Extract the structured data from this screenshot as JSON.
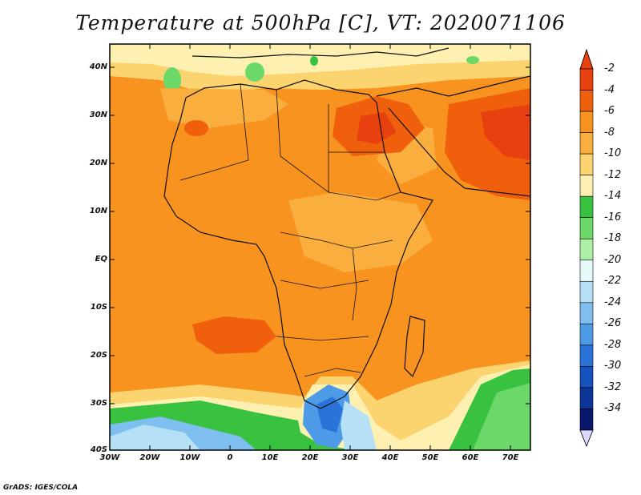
{
  "title": "Temperature at 500hPa [C], VT: 2020071106",
  "credit": "GrADS: IGES/COLA",
  "lat_labels": [
    "40N",
    "30N",
    "20N",
    "10N",
    "EQ",
    "10S",
    "20S",
    "30S",
    "40S"
  ],
  "lon_labels": [
    "30W",
    "20W",
    "10W",
    "0",
    "10E",
    "20E",
    "30E",
    "40E",
    "50E",
    "60E",
    "70E"
  ],
  "colorbar": {
    "labels": [
      "-2",
      "-4",
      "-6",
      "-8",
      "-10",
      "-12",
      "-14",
      "-16",
      "-18",
      "-20",
      "-22",
      "-24",
      "-26",
      "-28",
      "-30",
      "-32",
      "-34"
    ],
    "colors": [
      "#e8410f",
      "#f0600c",
      "#f7931e",
      "#f9ae3d",
      "#fbd36f",
      "#fdf0b0",
      "#38c23f",
      "#6dd86a",
      "#aef0a5",
      "#e8fbfb",
      "#b6e0f5",
      "#7fbfef",
      "#4d9be7",
      "#2a73d8",
      "#1652bd",
      "#0b3596",
      "#08166b"
    ]
  },
  "legend_range": [
    "-2",
    "-34"
  ],
  "colors": {
    "warm_core": "#e8410f",
    "hot": "#f0600c",
    "orange": "#f7931e",
    "light_orange": "#f9ae3d",
    "yellow": "#fbd36f",
    "pale": "#fdf0b0",
    "green": "#38c23f",
    "light_green": "#6dd86a",
    "blue": "#4d9be7"
  }
}
